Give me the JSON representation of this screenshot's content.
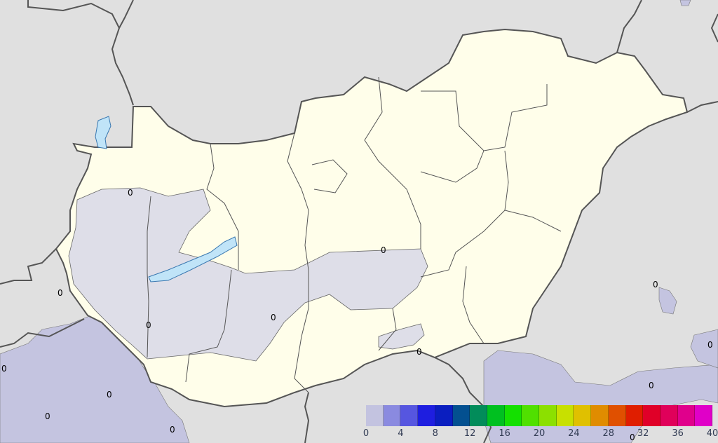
{
  "legend": {
    "min": 0,
    "max": 40,
    "step": 2,
    "tick_labels": [
      "0",
      "4",
      "8",
      "12",
      "16",
      "20",
      "24",
      "28",
      "32",
      "36",
      "40"
    ],
    "colors": [
      "#c3c3e0",
      "#8a8ae0",
      "#5656e0",
      "#1e1ee0",
      "#0a1ec0",
      "#035090",
      "#028c5a",
      "#00c020",
      "#14e000",
      "#50e000",
      "#8ce000",
      "#c8e000",
      "#e0c000",
      "#e08c00",
      "#e05000",
      "#e01e00",
      "#e00028",
      "#e0005a",
      "#e0008c",
      "#e000c8"
    ]
  },
  "map": {
    "colors": {
      "background": "#e0e0e0",
      "country": "#fffeea",
      "precip_inside": "#dedee8",
      "precip_outside": "#c4c4e0",
      "lake": "#c0e4f8",
      "border": "#555555"
    },
    "contour_label": "0"
  }
}
